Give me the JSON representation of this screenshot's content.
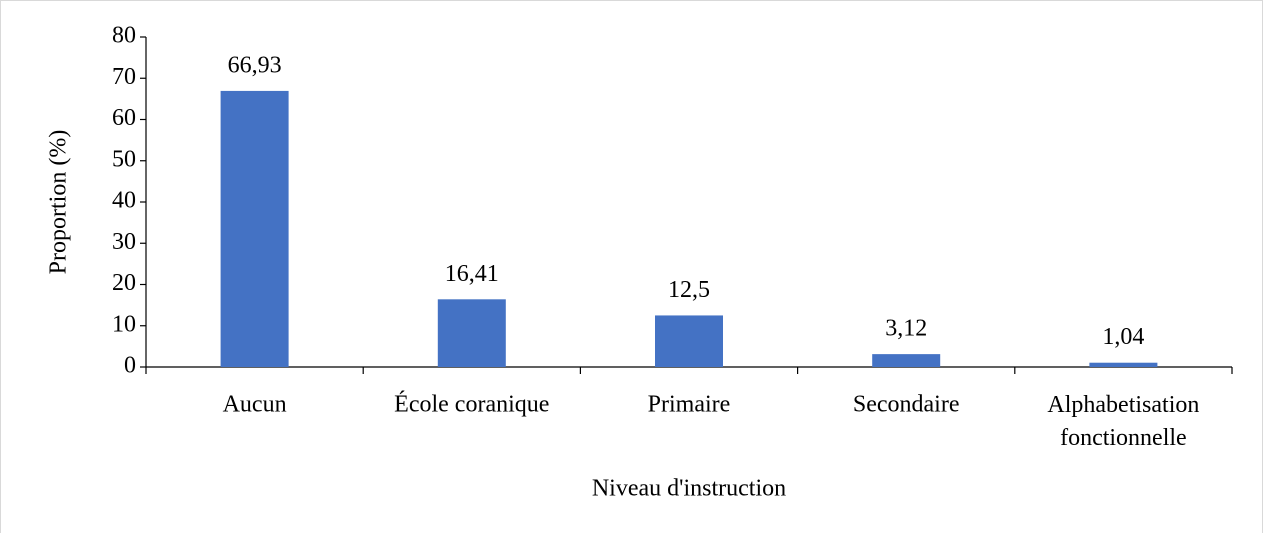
{
  "chart_data": {
    "type": "bar",
    "x_label": "Niveau d'instruction",
    "y_label": "Proportion (%)",
    "categories": [
      "Aucun",
      "École coranique",
      "Primaire",
      "Secondaire",
      "Alphabetisation fonctionnelle"
    ],
    "values": [
      66.93,
      16.41,
      12.5,
      3.12,
      1.04
    ],
    "value_labels": [
      "66,93",
      "16,41",
      "12,5",
      "3,12",
      "1,04"
    ],
    "color": "#4472c4",
    "ylim": [
      0,
      80
    ],
    "yticks": [
      0,
      10,
      20,
      30,
      40,
      50,
      60,
      70,
      80
    ],
    "grid": false
  }
}
